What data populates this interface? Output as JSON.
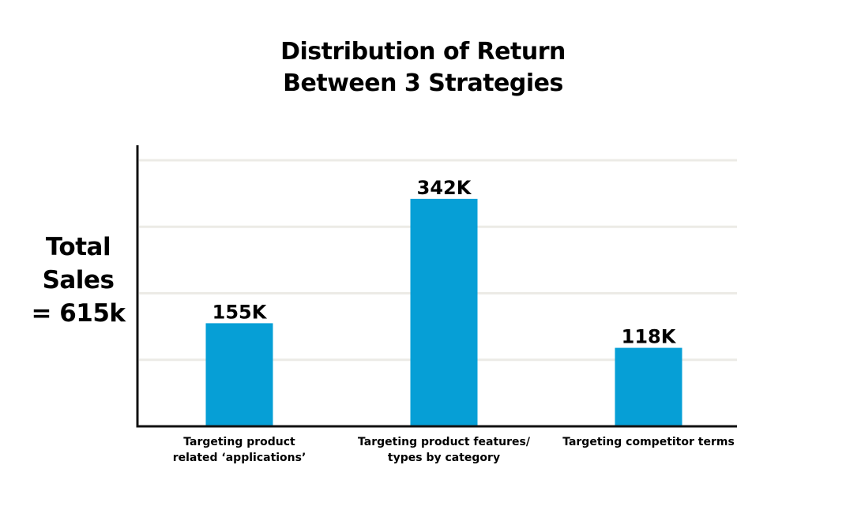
{
  "chart_data": {
    "type": "bar",
    "title": [
      "Distribution of Return",
      "Between 3 Strategies"
    ],
    "side_label": [
      "Total",
      "Sales",
      "= 615k"
    ],
    "categories": [
      [
        "Targeting product",
        "related ‘applications’"
      ],
      [
        "Targeting product features/",
        "types by category"
      ],
      [
        "Targeting competitor terms"
      ]
    ],
    "values": [
      155,
      342,
      118
    ],
    "value_labels": [
      "155K",
      "342K",
      "118K"
    ],
    "ylim": [
      0,
      420
    ],
    "gridlines": [
      100,
      200,
      300,
      400
    ],
    "grid": true,
    "bar_color": "#069fd6",
    "grid_color": "#ecebe6",
    "axis_color": "#111111"
  }
}
